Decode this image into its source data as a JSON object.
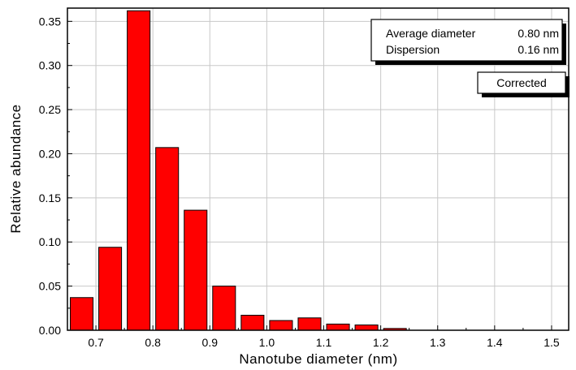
{
  "chart_data": {
    "type": "bar",
    "xlabel": "Nanotube diameter (nm)",
    "ylabel": "Relative abundance",
    "xlim": [
      0.65,
      1.53
    ],
    "ylim": [
      0,
      0.365
    ],
    "x_ticks": [
      "0.7",
      "0.8",
      "0.9",
      "1.0",
      "1.1",
      "1.2",
      "1.3",
      "1.4",
      "1.5"
    ],
    "y_ticks": [
      "0.00",
      "0.05",
      "0.10",
      "0.15",
      "0.20",
      "0.25",
      "0.30",
      "0.35"
    ],
    "grid": true,
    "bar_color": "#ff0000",
    "bar_width": 0.04,
    "x": [
      0.675,
      0.725,
      0.775,
      0.825,
      0.875,
      0.925,
      0.975,
      1.025,
      1.075,
      1.125,
      1.175,
      1.225
    ],
    "values": [
      0.037,
      0.094,
      0.362,
      0.207,
      0.136,
      0.05,
      0.017,
      0.011,
      0.014,
      0.007,
      0.006,
      0.002
    ]
  },
  "info_box": {
    "avg_label": "Average diameter",
    "avg_value": "0.80 nm",
    "disp_label": "Dispersion",
    "disp_value": "0.16 nm"
  },
  "label_box": {
    "text": "Corrected"
  }
}
